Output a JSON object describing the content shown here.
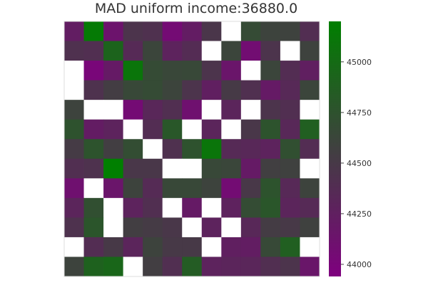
{
  "chart_data": {
    "type": "heatmap",
    "title": "MAD uniform income:36880.0",
    "colorbar": {
      "ticks": [
        45000,
        44750,
        44500,
        44250,
        44000
      ],
      "tick_labels": [
        "45000",
        "44750",
        "44500",
        "44250",
        "44000"
      ],
      "range": [
        43940,
        45200
      ]
    },
    "colorscale": [
      {
        "value": 43940,
        "color": "#7f007f"
      },
      {
        "value": 44570,
        "color": "#404040"
      },
      {
        "value": 45200,
        "color": "#007f00"
      }
    ],
    "masked_color": "#ffffff",
    "grid_lines": false,
    "rows": [
      [
        44230,
        45150,
        44130,
        44450,
        44420,
        44050,
        44220,
        44470,
        null,
        44680,
        44600,
        44590,
        44390
      ],
      [
        44420,
        44400,
        44920,
        44350,
        44620,
        44280,
        44370,
        null,
        44620,
        44070,
        44450,
        null,
        44590
      ],
      [
        null,
        44000,
        44200,
        45100,
        44680,
        44640,
        44650,
        44450,
        44150,
        null,
        44620,
        44380,
        44250
      ],
      [
        null,
        44430,
        44540,
        44650,
        44680,
        44610,
        44450,
        44250,
        44510,
        44410,
        44200,
        44340,
        44620
      ],
      [
        44600,
        null,
        null,
        44050,
        44320,
        44400,
        44100,
        null,
        44300,
        null,
        44450,
        44400,
        null
      ],
      [
        44750,
        44220,
        44280,
        null,
        44380,
        44800,
        null,
        44300,
        null,
        44480,
        44760,
        44330,
        44880
      ],
      [
        44520,
        44760,
        44550,
        44700,
        null,
        44420,
        44750,
        45100,
        44350,
        44330,
        44280,
        44720,
        44380
      ],
      [
        44400,
        44430,
        45200,
        44480,
        44480,
        null,
        null,
        44650,
        44630,
        44200,
        44560,
        44580,
        null
      ],
      [
        44100,
        null,
        44150,
        44600,
        44360,
        44650,
        44650,
        44600,
        44060,
        44490,
        44760,
        44340,
        44600
      ],
      [
        44300,
        44720,
        null,
        44280,
        44400,
        null,
        44200,
        null,
        44270,
        44690,
        44790,
        44300,
        44350
      ],
      [
        44430,
        44780,
        null,
        44550,
        44520,
        44480,
        null,
        44280,
        null,
        44330,
        44530,
        44500,
        44580
      ],
      [
        null,
        44380,
        44500,
        44300,
        44600,
        44500,
        44500,
        null,
        44250,
        44230,
        44660,
        44880,
        null
      ],
      [
        44600,
        44900,
        44950,
        null,
        44550,
        44400,
        44850,
        44280,
        44300,
        44310,
        44400,
        44450,
        44160
      ]
    ]
  }
}
